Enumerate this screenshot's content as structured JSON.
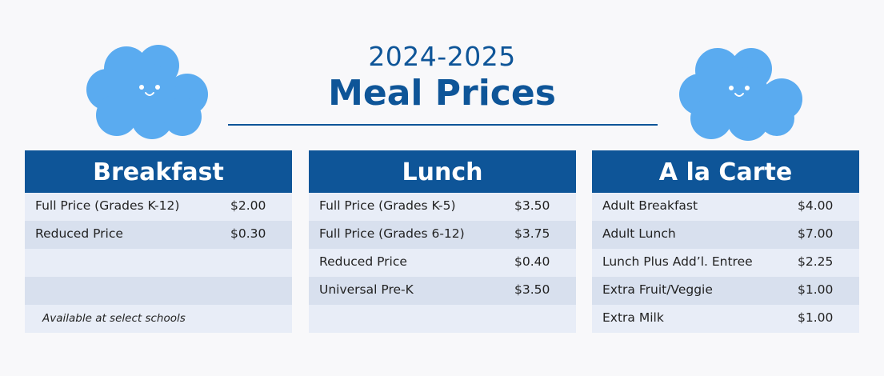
{
  "header": {
    "year": "2024-2025",
    "title": "Meal Prices"
  },
  "colors": {
    "brand_blue": "#0e5598",
    "cloud_blue": "#5aabf0",
    "row_light": "#e8edf7",
    "row_dark": "#d8e0ee"
  },
  "decorations": [
    "cloud-face-icon",
    "cloud-face-icon"
  ],
  "breakfast": {
    "title": "Breakfast",
    "items": [
      {
        "label": "Full Price (Grades K-12)",
        "price": "$2.00"
      },
      {
        "label": "Reduced Price",
        "price": "$0.30"
      }
    ],
    "note": "Available at select schools"
  },
  "lunch": {
    "title": "Lunch",
    "items": [
      {
        "label": "Full Price (Grades K-5)",
        "price": "$3.50"
      },
      {
        "label": "Full Price (Grades 6-12)",
        "price": "$3.75"
      },
      {
        "label": "Reduced Price",
        "price": "$0.40"
      },
      {
        "label": "Universal Pre-K",
        "price": "$3.50"
      }
    ]
  },
  "alacarte": {
    "title": "A la Carte",
    "items": [
      {
        "label": "Adult Breakfast",
        "price": "$4.00"
      },
      {
        "label": "Adult Lunch",
        "price": "$7.00"
      },
      {
        "label": "Lunch Plus Add’l. Entree",
        "price": "$2.25"
      },
      {
        "label": "Extra Fruit/Veggie",
        "price": "$1.00"
      },
      {
        "label": "Extra Milk",
        "price": "$1.00"
      }
    ]
  }
}
